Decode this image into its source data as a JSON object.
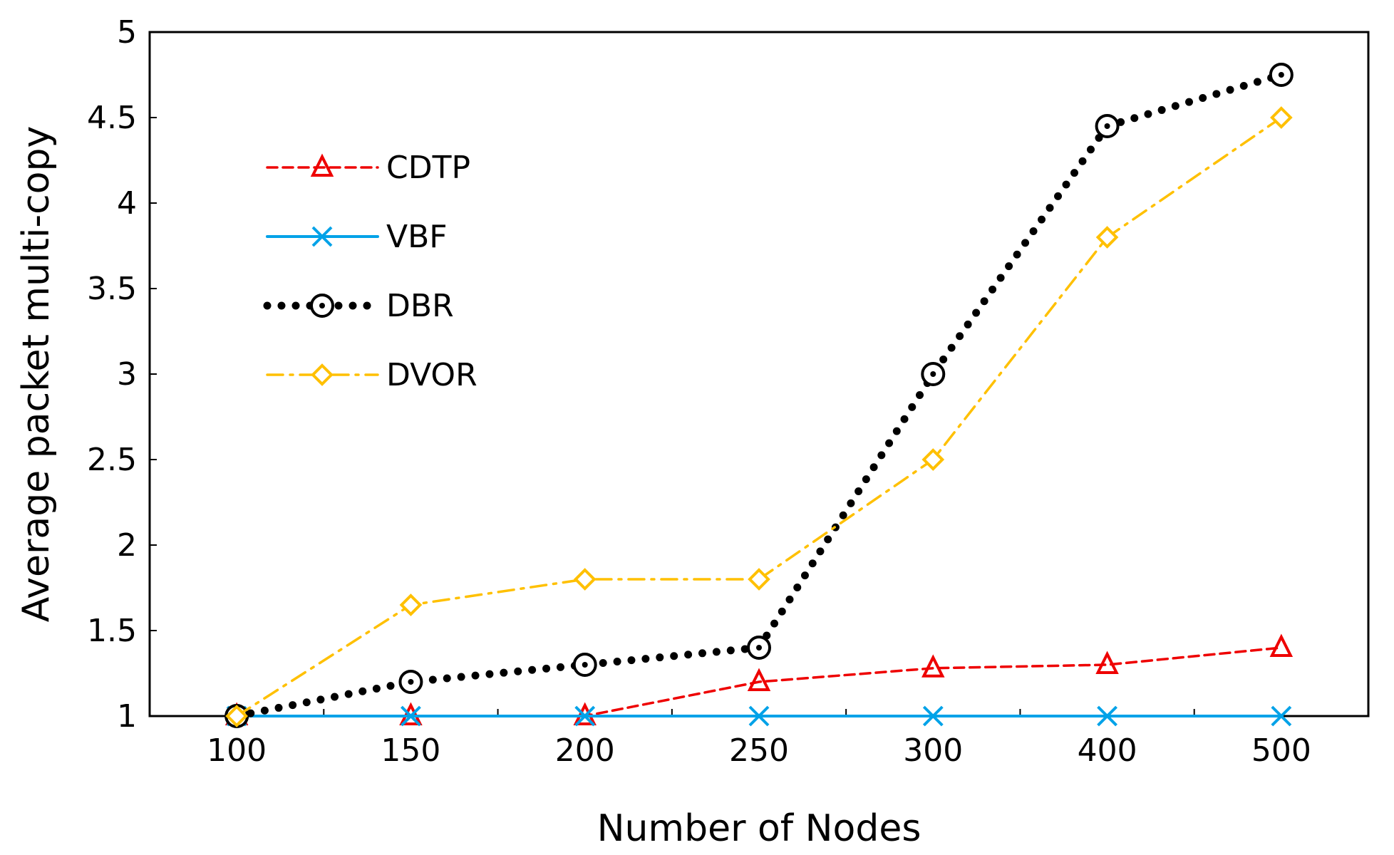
{
  "chart_data": {
    "type": "line",
    "categories": [
      "100",
      "150",
      "200",
      "250",
      "300",
      "400",
      "500"
    ],
    "xlabel": "Number of Nodes",
    "ylabel": "Average packet multi-copy",
    "ylim": [
      1,
      5
    ],
    "yticks": [
      "1",
      "1.5",
      "2",
      "2.5",
      "3",
      "3.5",
      "4",
      "4.5",
      "5"
    ],
    "grid": false,
    "legend_position": "top-left",
    "series": [
      {
        "name": "CDTP",
        "values": [
          1,
          1,
          1,
          1.2,
          1.28,
          1.3,
          1.4
        ],
        "color": "#ee0000",
        "marker": "triangle",
        "dash": "dashed"
      },
      {
        "name": "VBF",
        "values": [
          1,
          1,
          1,
          1,
          1,
          1,
          1
        ],
        "color": "#00a2e8",
        "marker": "x",
        "dash": "solid"
      },
      {
        "name": "DBR",
        "values": [
          1,
          1.2,
          1.3,
          1.4,
          3,
          4.45,
          4.75
        ],
        "color": "#000000",
        "marker": "circle",
        "dash": "dotted"
      },
      {
        "name": "DVOR",
        "values": [
          1,
          1.65,
          1.8,
          1.8,
          2.5,
          3.8,
          4.5
        ],
        "color": "#ffc000",
        "marker": "diamond",
        "dash": "dashdot"
      }
    ]
  }
}
